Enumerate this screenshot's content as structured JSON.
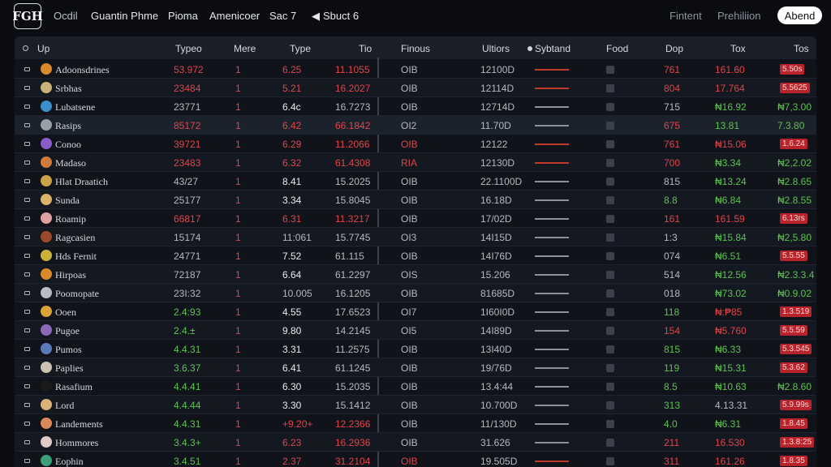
{
  "header": {
    "logo": "FGH",
    "nav": [
      "Ocdil",
      "Guantin Phme",
      "Pioma",
      "Amenicoer",
      "Sac 7",
      "Sbuct 6"
    ],
    "nav_right": [
      "Fintent",
      "Prehiliion"
    ],
    "about_button": "Abend"
  },
  "table": {
    "columns": [
      "Up",
      "Typeo",
      "Mere",
      "Type",
      "Tio",
      "Finous",
      "Ultiors",
      "Sybtand",
      "Food",
      "Dop",
      "Tox",
      "Tos"
    ],
    "rows": [
      {
        "name": "Adoonsdrines",
        "avatar": "#d98a2a",
        "c1": "53.972",
        "c1c": "red",
        "c2": "1",
        "c3": "6.25",
        "c3c": "red",
        "c4": "11.1055",
        "c4c": "red",
        "c5": "OIB",
        "c5c": "grey",
        "c6": "12100D",
        "spark": "red",
        "c8": "761",
        "c8c": "red",
        "c9": "161.60",
        "c9c": "red",
        "c10": "5.50s",
        "c10t": "badge",
        "style": ""
      },
      {
        "name": "Srbhas",
        "avatar": "#c9b27a",
        "c1": "23484",
        "c1c": "red",
        "c2": "1",
        "c3": "5.21",
        "c3c": "red",
        "c4": "16.2027",
        "c4c": "red",
        "c5": "OIB",
        "c5c": "grey",
        "c6": "12114D",
        "spark": "red",
        "c8": "804",
        "c8c": "red",
        "c9": "17.764",
        "c9c": "red",
        "c10": "5.5625",
        "c10t": "badge",
        "style": "alt"
      },
      {
        "name": "Lubatsene",
        "avatar": "#3a8fc9",
        "c1": "23771",
        "c1c": "grey",
        "c2": "1",
        "c3": "6.4c",
        "c3c": "white",
        "c4": "16.7273",
        "c4c": "grey",
        "c5": "OIB",
        "c5c": "grey",
        "c6": "12714D",
        "spark": "grey",
        "c8": "715",
        "c8c": "grey",
        "c9": "₦16.92",
        "c9c": "green",
        "c10": "₦7,3.00",
        "c10t": "green",
        "style": ""
      },
      {
        "name": "Rasips",
        "avatar": "#9aa0a8",
        "c1": "85172",
        "c1c": "red",
        "c2": "1",
        "c3": "6.42",
        "c3c": "red",
        "c4": "66.1842",
        "c4c": "red",
        "c5": "OI2",
        "c5c": "grey",
        "c6": "11.70D",
        "spark": "grey",
        "c8": "675",
        "c8c": "red",
        "c9": "13.81",
        "c9c": "green",
        "c10": "7.3.80",
        "c10t": "green",
        "style": "hl"
      },
      {
        "name": "Conoo",
        "avatar": "#8a5cc9",
        "c1": "39721",
        "c1c": "red",
        "c2": "1",
        "c3": "6.29",
        "c3c": "red",
        "c4": "11.2066",
        "c4c": "red",
        "c5": "OIB",
        "c5c": "red",
        "c6": "12122",
        "spark": "red",
        "c8": "761",
        "c8c": "red",
        "c9": "₦15.06",
        "c9c": "red",
        "c10": "1.6.24",
        "c10t": "badge",
        "style": ""
      },
      {
        "name": "Madaso",
        "avatar": "#d07a3a",
        "c1": "23483",
        "c1c": "red",
        "c2": "1",
        "c3": "6.32",
        "c3c": "red",
        "c4": "61.4308",
        "c4c": "red",
        "c5": "RIA",
        "c5c": "red",
        "c6": "12130D",
        "spark": "red",
        "c8": "700",
        "c8c": "red",
        "c9": "₦3.34",
        "c9c": "green",
        "c10": "₦2,2.02",
        "c10t": "green",
        "style": "alt"
      },
      {
        "name": "Hlat Draatich",
        "avatar": "#c9a24a",
        "c1": "43/27",
        "c1c": "grey",
        "c2": "1",
        "c3": "8.41",
        "c3c": "white",
        "c4": "15.2025",
        "c4c": "grey",
        "c5": "OIB",
        "c5c": "grey",
        "c6": "22.1100D",
        "spark": "grey",
        "c8": "815",
        "c8c": "grey",
        "c9": "₦13.24",
        "c9c": "green",
        "c10": "₦2.8.65",
        "c10t": "green",
        "style": ""
      },
      {
        "name": "Sunda",
        "avatar": "#d9b36a",
        "c1": "25177",
        "c1c": "grey",
        "c2": "1",
        "c3": "3.34",
        "c3c": "white",
        "c4": "15.8045",
        "c4c": "grey",
        "c5": "OIB",
        "c5c": "grey",
        "c6": "16.18D",
        "spark": "grey",
        "c8": "8.8",
        "c8c": "green",
        "c9": "₦6.84",
        "c9c": "green",
        "c10": "₦2.8.55",
        "c10t": "green",
        "style": "alt"
      },
      {
        "name": "Roamip",
        "avatar": "#e0a0a0",
        "c1": "66817",
        "c1c": "red",
        "c2": "1",
        "c3": "6.31",
        "c3c": "red",
        "c4": "11.3217",
        "c4c": "red",
        "c5": "OIB",
        "c5c": "grey",
        "c6": "17/02D",
        "spark": "grey",
        "c8": "161",
        "c8c": "red",
        "c9": "161.59",
        "c9c": "red",
        "c10": "6.13rs",
        "c10t": "badge",
        "style": ""
      },
      {
        "name": "Ragcasien",
        "avatar": "#9a4a2a",
        "c1": "15174",
        "c1c": "grey",
        "c2": "1",
        "c3": "11:061",
        "c3c": "grey",
        "c4": "15.7745",
        "c4c": "grey",
        "c5": "OI3",
        "c5c": "grey",
        "c6": "14I15D",
        "spark": "grey",
        "c8": "1:3",
        "c8c": "grey",
        "c9": "₦15.84",
        "c9c": "green",
        "c10": "₦2,5.80",
        "c10t": "green",
        "style": "alt"
      },
      {
        "name": "Hds Fernit",
        "avatar": "#c9b23a",
        "c1": "24771",
        "c1c": "grey",
        "c2": "1",
        "c3": "7.52",
        "c3c": "white",
        "c4": "61.115",
        "c4c": "grey",
        "c5": "OIB",
        "c5c": "grey",
        "c6": "14I76D",
        "spark": "grey",
        "c8": "074",
        "c8c": "grey",
        "c9": "₦6.51",
        "c9c": "green",
        "c10": "5.5.55",
        "c10t": "badge",
        "style": ""
      },
      {
        "name": "Hirpoas",
        "avatar": "#d98a2a",
        "c1": "72187",
        "c1c": "grey",
        "c2": "1",
        "c3": "6.64",
        "c3c": "white",
        "c4": "61.2297",
        "c4c": "grey",
        "c5": "OIS",
        "c5c": "grey",
        "c6": "15.206",
        "spark": "grey",
        "c8": "514",
        "c8c": "grey",
        "c9": "₦12.56",
        "c9c": "green",
        "c10": "₦2.3.3.4",
        "c10t": "green",
        "style": "alt"
      },
      {
        "name": "Poomopate",
        "avatar": "#b9bcc2",
        "c1": "23I:32",
        "c1c": "grey",
        "c2": "1",
        "c3": "10.005",
        "c3c": "grey",
        "c4": "16.1205",
        "c4c": "grey",
        "c5": "OIB",
        "c5c": "grey",
        "c6": "81685D",
        "spark": "grey",
        "c8": "018",
        "c8c": "grey",
        "c9": "₦73.02",
        "c9c": "green",
        "c10": "₦0.9.02",
        "c10t": "green",
        "style": "alt"
      },
      {
        "name": "Ooen",
        "avatar": "#d9a23a",
        "c1": "2.4:93",
        "c1c": "green",
        "c2": "1",
        "c3": "4.55",
        "c3c": "white",
        "c4": "17.6523",
        "c4c": "grey",
        "c5": "OI7",
        "c5c": "grey",
        "c6": "1I60I0D",
        "spark": "grey",
        "c8": "118",
        "c8c": "green",
        "c9": "₦:₱85",
        "c9c": "red",
        "c10": "1.3.519",
        "c10t": "badge",
        "style": ""
      },
      {
        "name": "Pugoe",
        "avatar": "#8a6ab9",
        "c1": "2.4.±",
        "c1c": "green",
        "c2": "1",
        "c3": "9.80",
        "c3c": "white",
        "c4": "14.2145",
        "c4c": "grey",
        "c5": "OI5",
        "c5c": "grey",
        "c6": "14I89D",
        "spark": "grey",
        "c8": "154",
        "c8c": "red",
        "c9": "₦5.760",
        "c9c": "red",
        "c10": "5.5.59",
        "c10t": "badge",
        "style": "alt"
      },
      {
        "name": "Pumos",
        "avatar": "#5a7ab9",
        "c1": "4.4.31",
        "c1c": "green",
        "c2": "1",
        "c3": "3.31",
        "c3c": "white",
        "c4": "11.2575",
        "c4c": "grey",
        "c5": "OIB",
        "c5c": "grey",
        "c6": "13I40D",
        "spark": "grey",
        "c8": "815",
        "c8c": "green",
        "c9": "₦6.33",
        "c9c": "green",
        "c10": "5.3.545",
        "c10t": "badge",
        "style": ""
      },
      {
        "name": "Paplies",
        "avatar": "#c9c2b2",
        "c1": "3.6.37",
        "c1c": "green",
        "c2": "1",
        "c3": "6.41",
        "c3c": "white",
        "c4": "61.1245",
        "c4c": "grey",
        "c5": "OIB",
        "c5c": "grey",
        "c6": "19/76D",
        "spark": "grey",
        "c8": "119",
        "c8c": "green",
        "c9": "₦15.31",
        "c9c": "green",
        "c10": "5.3.62",
        "c10t": "badge",
        "style": "alt"
      },
      {
        "name": "Rasafium",
        "avatar": "#1a1a1a",
        "c1": "4.4.41",
        "c1c": "green",
        "c2": "1",
        "c3": "6.30",
        "c3c": "white",
        "c4": "15.2035",
        "c4c": "grey",
        "c5": "OIB",
        "c5c": "grey",
        "c6": "13.4:44",
        "spark": "grey",
        "c8": "8.5",
        "c8c": "green",
        "c9": "₦10.63",
        "c9c": "green",
        "c10": "₦2.8.60",
        "c10t": "green",
        "style": ""
      },
      {
        "name": "Lord",
        "avatar": "#d9b27a",
        "c1": "4.4.44",
        "c1c": "green",
        "c2": "1",
        "c3": "3.30",
        "c3c": "white",
        "c4": "15.1412",
        "c4c": "grey",
        "c5": "OIB",
        "c5c": "grey",
        "c6": "10.700D",
        "spark": "grey",
        "c8": "313",
        "c8c": "green",
        "c9": "4.13.31",
        "c9c": "grey",
        "c10": "5.9.99s",
        "c10t": "badge",
        "style": "alt"
      },
      {
        "name": "Landements",
        "avatar": "#d98a5a",
        "c1": "4.4.31",
        "c1c": "green",
        "c2": "1",
        "c3": "+9.20+",
        "c3c": "red",
        "c4": "12.2366",
        "c4c": "red",
        "c5": "OIB",
        "c5c": "grey",
        "c6": "11/130D",
        "spark": "grey",
        "c8": "4.0",
        "c8c": "green",
        "c9": "₦6.31",
        "c9c": "green",
        "c10": "1.8.45",
        "c10t": "badge",
        "style": ""
      },
      {
        "name": "Hommores",
        "avatar": "#e0c9c9",
        "c1": "3.4.3+",
        "c1c": "green",
        "c2": "1",
        "c3": "6.23",
        "c3c": "red",
        "c4": "16.2936",
        "c4c": "red",
        "c5": "OIB",
        "c5c": "grey",
        "c6": "31.626",
        "spark": "grey",
        "c8": "211",
        "c8c": "red",
        "c9": "16.530",
        "c9c": "red",
        "c10": "1.3.8:25",
        "c10t": "badge",
        "style": "alt"
      },
      {
        "name": "Eophin",
        "avatar": "#3aa07a",
        "c1": "3.4.51",
        "c1c": "green",
        "c2": "1",
        "c3": "2.37",
        "c3c": "red",
        "c4": "31.2104",
        "c4c": "red",
        "c5": "OIB",
        "c5c": "red",
        "c6": "19.505D",
        "spark": "red",
        "c8": "311",
        "c8c": "red",
        "c9": "161.26",
        "c9c": "red",
        "c10": "1.8.35",
        "c10t": "badge",
        "style": ""
      }
    ]
  }
}
